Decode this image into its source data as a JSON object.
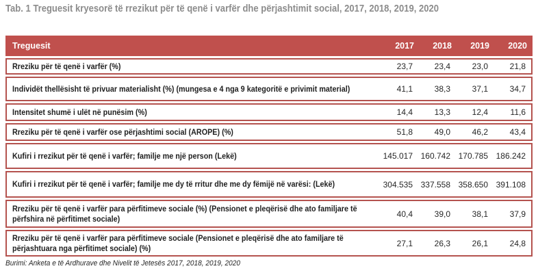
{
  "page": {
    "caption": "Tab. 1 Treguesit kryesorë të rrezikut për të qenë i varfër dhe përjashtimit social, 2017, 2018, 2019, 2020",
    "source": "Burimi: Anketa e të Ardhurave dhe Nivelit të Jetesës 2017, 2018, 2019, 2020"
  },
  "colors": {
    "header_bg": "#c0504d",
    "row_border": "#b4524e",
    "header_text": "#ffffff",
    "caption_text": "#8c8c8c",
    "body_text": "#1f1f1f"
  },
  "chart_data": {
    "type": "table",
    "title": "Tab. 1 Treguesit kryesorë të rrezikut për të qenë i varfër dhe përjashtimit social, 2017, 2018, 2019, 2020",
    "columns": [
      "Treguesit",
      "2017",
      "2018",
      "2019",
      "2020"
    ],
    "rows": [
      {
        "label": "Rreziku për të qenë i varfër (%)",
        "values": [
          "23,7",
          "23,4",
          "23,0",
          "21,8"
        ]
      },
      {
        "label": "Individët thellësisht të privuar materialisht (%) (mungesa e 4 nga 9 kategoritë e privimit material)",
        "values": [
          "41,1",
          "38,3",
          "37,1",
          "34,7"
        ]
      },
      {
        "label": "Intensitet shumë i ulët në punësim (%)",
        "values": [
          "14,4",
          "13,3",
          "12,4",
          "11,6"
        ]
      },
      {
        "label": "Rreziku për të qenë i varfër ose përjashtimi social (AROPE) (%)",
        "values": [
          "51,8",
          "49,0",
          "46,2",
          "43,4"
        ]
      },
      {
        "label": "Kufiri i rrezikut për të qenë i varfër; familje me një person (Lekë)",
        "values": [
          "145.017",
          "160.742",
          "170.785",
          "186.242"
        ]
      },
      {
        "label": "Kufiri i rrezikut për të qenë i varfër; familje me dy të rritur dhe me dy fëmijë në varësi: (Lekë)",
        "values": [
          "304.535",
          "337.558",
          "358.650",
          "391.108"
        ]
      },
      {
        "label": "Rreziku për të qenë i varfër para përfitimeve sociale (%) (Pensionet e pleqërisë dhe ato familjare të përfshira në përfitimet sociale)",
        "values": [
          "40,4",
          "39,0",
          "38,1",
          "37,9"
        ]
      },
      {
        "label": "Rreziku për të qenë i varfër para përfitimeve sociale (Pensionet e pleqërisë dhe ato familjare të përjashtuara nga përfitimet sociale) (%)",
        "values": [
          "27,1",
          "26,3",
          "26,1",
          "24,8"
        ]
      }
    ],
    "source": "Burimi: Anketa e të Ardhurave dhe Nivelit të Jetesës 2017, 2018, 2019, 2020"
  }
}
